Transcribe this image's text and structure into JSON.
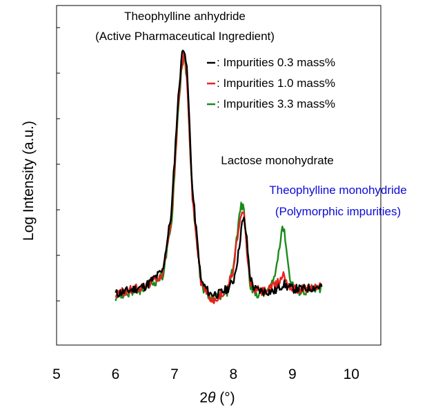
{
  "chart_data": {
    "type": "line",
    "xlabel_prefix": "2",
    "xlabel_symbol": "θ",
    "xlabel_unit": " (°)",
    "ylabel": "Log Intensity (a.u.)",
    "xlim": [
      5,
      10.5
    ],
    "x_ticks": [
      "5",
      "6",
      "7",
      "8",
      "9",
      "10"
    ],
    "y_scale": "log",
    "y_range_relative": [
      0,
      1
    ],
    "y_ticks_labeled": false,
    "grid": false,
    "legend_position": "top-right",
    "series": [
      {
        "name": ": Impurities 0.3 mass%",
        "color": "#000000",
        "x": [
          6.0,
          6.5,
          6.8,
          6.95,
          7.05,
          7.12,
          7.17,
          7.22,
          7.3,
          7.45,
          7.6,
          7.75,
          7.9,
          8.0,
          8.08,
          8.14,
          8.18,
          8.22,
          8.28,
          8.35,
          8.5,
          8.7,
          8.8,
          8.85,
          8.9,
          9.0,
          9.2,
          9.5
        ],
        "y": [
          0.03,
          0.06,
          0.12,
          0.35,
          0.75,
          0.96,
          1.0,
          0.88,
          0.45,
          0.08,
          0.03,
          0.03,
          0.05,
          0.08,
          0.18,
          0.3,
          0.32,
          0.26,
          0.1,
          0.05,
          0.04,
          0.04,
          0.06,
          0.07,
          0.06,
          0.05,
          0.05,
          0.06
        ]
      },
      {
        "name": ": Impurities 1.0 mass%",
        "color": "#e8211c",
        "x": [
          6.0,
          6.5,
          6.8,
          6.95,
          7.05,
          7.12,
          7.17,
          7.22,
          7.3,
          7.45,
          7.6,
          7.7,
          7.9,
          8.0,
          8.08,
          8.13,
          8.18,
          8.22,
          8.28,
          8.35,
          8.5,
          8.7,
          8.8,
          8.85,
          8.9,
          9.0,
          9.2,
          9.5
        ],
        "y": [
          0.03,
          0.06,
          0.11,
          0.33,
          0.72,
          0.93,
          0.97,
          0.85,
          0.42,
          0.07,
          0.02,
          0.0,
          0.06,
          0.12,
          0.28,
          0.33,
          0.34,
          0.22,
          0.08,
          0.05,
          0.04,
          0.06,
          0.09,
          0.11,
          0.08,
          0.05,
          0.05,
          0.06
        ]
      },
      {
        "name": ": Impurities 3.3 mass%",
        "color": "#1a8a1a",
        "x": [
          6.0,
          6.5,
          6.8,
          6.95,
          7.05,
          7.12,
          7.17,
          7.22,
          7.3,
          7.45,
          7.6,
          7.75,
          7.9,
          8.0,
          8.08,
          8.13,
          8.18,
          8.22,
          8.28,
          8.35,
          8.5,
          8.65,
          8.72,
          8.78,
          8.83,
          8.88,
          8.95,
          9.05,
          9.2,
          9.5
        ],
        "y": [
          0.02,
          0.05,
          0.1,
          0.3,
          0.7,
          0.92,
          0.96,
          0.84,
          0.42,
          0.07,
          0.01,
          0.02,
          0.04,
          0.14,
          0.3,
          0.38,
          0.36,
          0.22,
          0.07,
          0.03,
          0.03,
          0.06,
          0.12,
          0.22,
          0.3,
          0.25,
          0.1,
          0.04,
          0.04,
          0.05
        ]
      }
    ],
    "annotations": [
      {
        "text": "Theophylline anhydride",
        "color": "#000000"
      },
      {
        "text": "(Active Pharmaceutical Ingredient)",
        "color": "#000000"
      },
      {
        "text": "Lactose monohydrate",
        "color": "#000000"
      },
      {
        "text": "Theophylline monohydride",
        "color": "#0a0ad6"
      },
      {
        "text": "(Polymorphic impurities)",
        "color": "#0a0ad6"
      }
    ]
  }
}
